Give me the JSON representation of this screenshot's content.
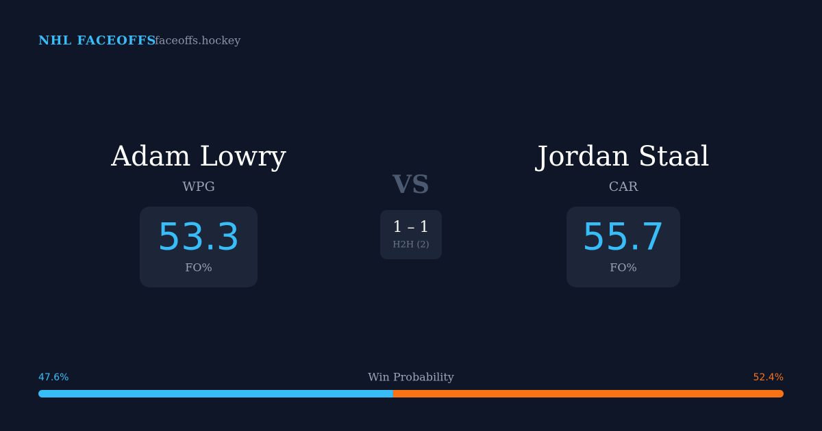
{
  "brand": {
    "title": "NHL FACEOFFS",
    "site": "faceoffs.hockey"
  },
  "players": [
    {
      "name": "Adam Lowry",
      "team": "WPG",
      "fo_pct": 53.3,
      "fo_label": "FO%"
    },
    {
      "name": "Jordan Staal",
      "team": "CAR",
      "fo_pct": 55.7,
      "fo_label": "FO%"
    }
  ],
  "versus": "VS",
  "h2h": {
    "record": "1 – 1",
    "label": "H2H (2)"
  },
  "win_probability": {
    "title": "Win Probability",
    "left": {
      "value": 47.6,
      "label": "47.6%",
      "color": "#38bdf8"
    },
    "right": {
      "value": 52.4,
      "label": "52.4%",
      "color": "#f97316"
    }
  }
}
